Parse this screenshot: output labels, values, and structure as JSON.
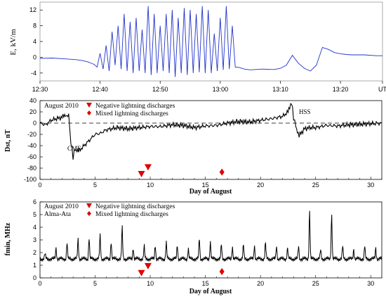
{
  "chart_data": [
    {
      "type": "line",
      "ylabel": "E, kV/m",
      "x_tick_labels": [
        "12:30",
        "12:40",
        "12:50",
        "13:00",
        "13:10",
        "13:20",
        "UT"
      ],
      "y_tick_labels": [
        "-4",
        "0",
        "4",
        "8",
        "12"
      ],
      "ylim": [
        -6,
        14
      ],
      "xlim_minutes": [
        0,
        57
      ],
      "series": [
        {
          "color": "#2233cc",
          "x": [
            0,
            2,
            4,
            6,
            7,
            8,
            9,
            9.5,
            10,
            10.5,
            11,
            11.5,
            12,
            12.5,
            13,
            13.5,
            14,
            14.5,
            15,
            15.5,
            16,
            16.5,
            17,
            17.5,
            18,
            18.5,
            19,
            19.5,
            20,
            20.5,
            21,
            21.5,
            22,
            22.5,
            23,
            23.5,
            24,
            24.5,
            25,
            25.5,
            26,
            26.5,
            27,
            27.5,
            28,
            28.5,
            29,
            29.5,
            30,
            30.5,
            31,
            31.5,
            32,
            32.5,
            33,
            34,
            35,
            37,
            39,
            40,
            41,
            42,
            43,
            44,
            45,
            46,
            47,
            48,
            49,
            50,
            51,
            52,
            54,
            56,
            57
          ],
          "y": [
            -0.3,
            -0.2,
            -0.4,
            -0.6,
            -0.8,
            -1.2,
            -1.8,
            -2.5,
            1,
            -3,
            3,
            -3.5,
            6.5,
            -2,
            8,
            -3,
            11,
            -3.5,
            9,
            -4,
            10,
            -3.5,
            7,
            -4,
            13,
            -4.5,
            11,
            -4,
            8,
            -3.5,
            11,
            -4,
            12,
            -5,
            10,
            -4,
            12.5,
            -4.5,
            12,
            -4,
            11,
            -3.8,
            13,
            -4,
            12,
            -4,
            6,
            -3.5,
            10,
            -3.2,
            13,
            -3,
            8,
            -2.5,
            -2.5,
            -3,
            -3.2,
            -3,
            -3.1,
            -2.8,
            -2,
            0.5,
            -1.5,
            -2.8,
            -3.5,
            -2,
            2.5,
            2,
            1.2,
            0.9,
            0.7,
            0.6,
            0.6,
            0.4,
            0.4
          ]
        }
      ]
    },
    {
      "type": "line",
      "ylabel": "Dst, nT",
      "xlabel": "Day of August",
      "x_tick_labels": [
        "0",
        "5",
        "10",
        "15",
        "20",
        "25",
        "30"
      ],
      "y_tick_labels": [
        "40",
        "20",
        "0",
        "-20",
        "-40",
        "-60",
        "-80",
        "-100"
      ],
      "ylim": [
        -100,
        40
      ],
      "xlim": [
        0,
        31
      ],
      "title": "August 2010",
      "legend": [
        "Negative lightning discharges",
        "Mixed lightning discharges"
      ],
      "annotations": [
        "CME",
        "HSS"
      ],
      "series": [
        {
          "color": "#000000",
          "x": [
            0,
            0.5,
            1,
            1.5,
            2,
            2.3,
            2.6,
            2.8,
            3,
            3.2,
            3.5,
            4,
            4.5,
            5,
            5.5,
            6,
            7,
            8,
            9,
            10,
            11,
            12,
            13,
            14,
            15,
            16,
            17,
            18,
            19,
            20,
            21,
            22,
            22.5,
            22.8,
            23,
            23.2,
            23.5,
            24,
            24.5,
            25,
            26,
            27,
            28,
            29,
            30,
            31
          ],
          "y": [
            0,
            -3,
            5,
            8,
            10,
            14,
            15,
            -35,
            -60,
            -45,
            -50,
            -40,
            -30,
            -20,
            -18,
            -12,
            -8,
            -10,
            -8,
            -6,
            -6,
            -3,
            -4,
            -8,
            -5,
            -4,
            0,
            3,
            2,
            5,
            8,
            12,
            20,
            38,
            10,
            -5,
            -22,
            -10,
            -8,
            -8,
            -4,
            -5,
            -3,
            -2,
            -1,
            0
          ]
        }
      ],
      "neg_lightning": [
        {
          "day": 9.2,
          "value": -90
        },
        {
          "day": 9.8,
          "value": -78
        }
      ],
      "mixed_lightning": [
        {
          "day": 16.5,
          "value": -87
        }
      ],
      "dashed_zero_line": true
    },
    {
      "type": "line",
      "ylabel": "fmin, MHz",
      "xlabel": "Day of August",
      "x_tick_labels": [
        "0",
        "5",
        "10",
        "15",
        "20",
        "25",
        "30"
      ],
      "y_tick_labels": [
        "6",
        "5",
        "4",
        "3",
        "2",
        "1",
        "0"
      ],
      "ylim": [
        0,
        6
      ],
      "xlim": [
        0,
        31
      ],
      "title": "August 2010",
      "subtitle": "Alma-Ata",
      "legend": [
        "Negative lightning discharges",
        "Mixed lightning discharges"
      ],
      "series": [
        {
          "color": "#000000",
          "daily_peaks": [
            1.9,
            2.4,
            2.8,
            3.1,
            3.2,
            3.4,
            2.9,
            4.0,
            2.4,
            2.5,
            2.6,
            2.8,
            2.6,
            2.3,
            3.1,
            2.9,
            2.6,
            2.5,
            2.6,
            2.6,
            2.8,
            2.5,
            2.4,
            2.5,
            5.4,
            2.2,
            5.1,
            2.5,
            2.3,
            2.5,
            2.4
          ],
          "baseline": 1.5
        }
      ],
      "neg_lightning": [
        {
          "day": 9.2,
          "value": 0.4
        },
        {
          "day": 9.8,
          "value": 0.95
        }
      ],
      "mixed_lightning": [
        {
          "day": 16.5,
          "value": 0.5
        }
      ]
    }
  ]
}
